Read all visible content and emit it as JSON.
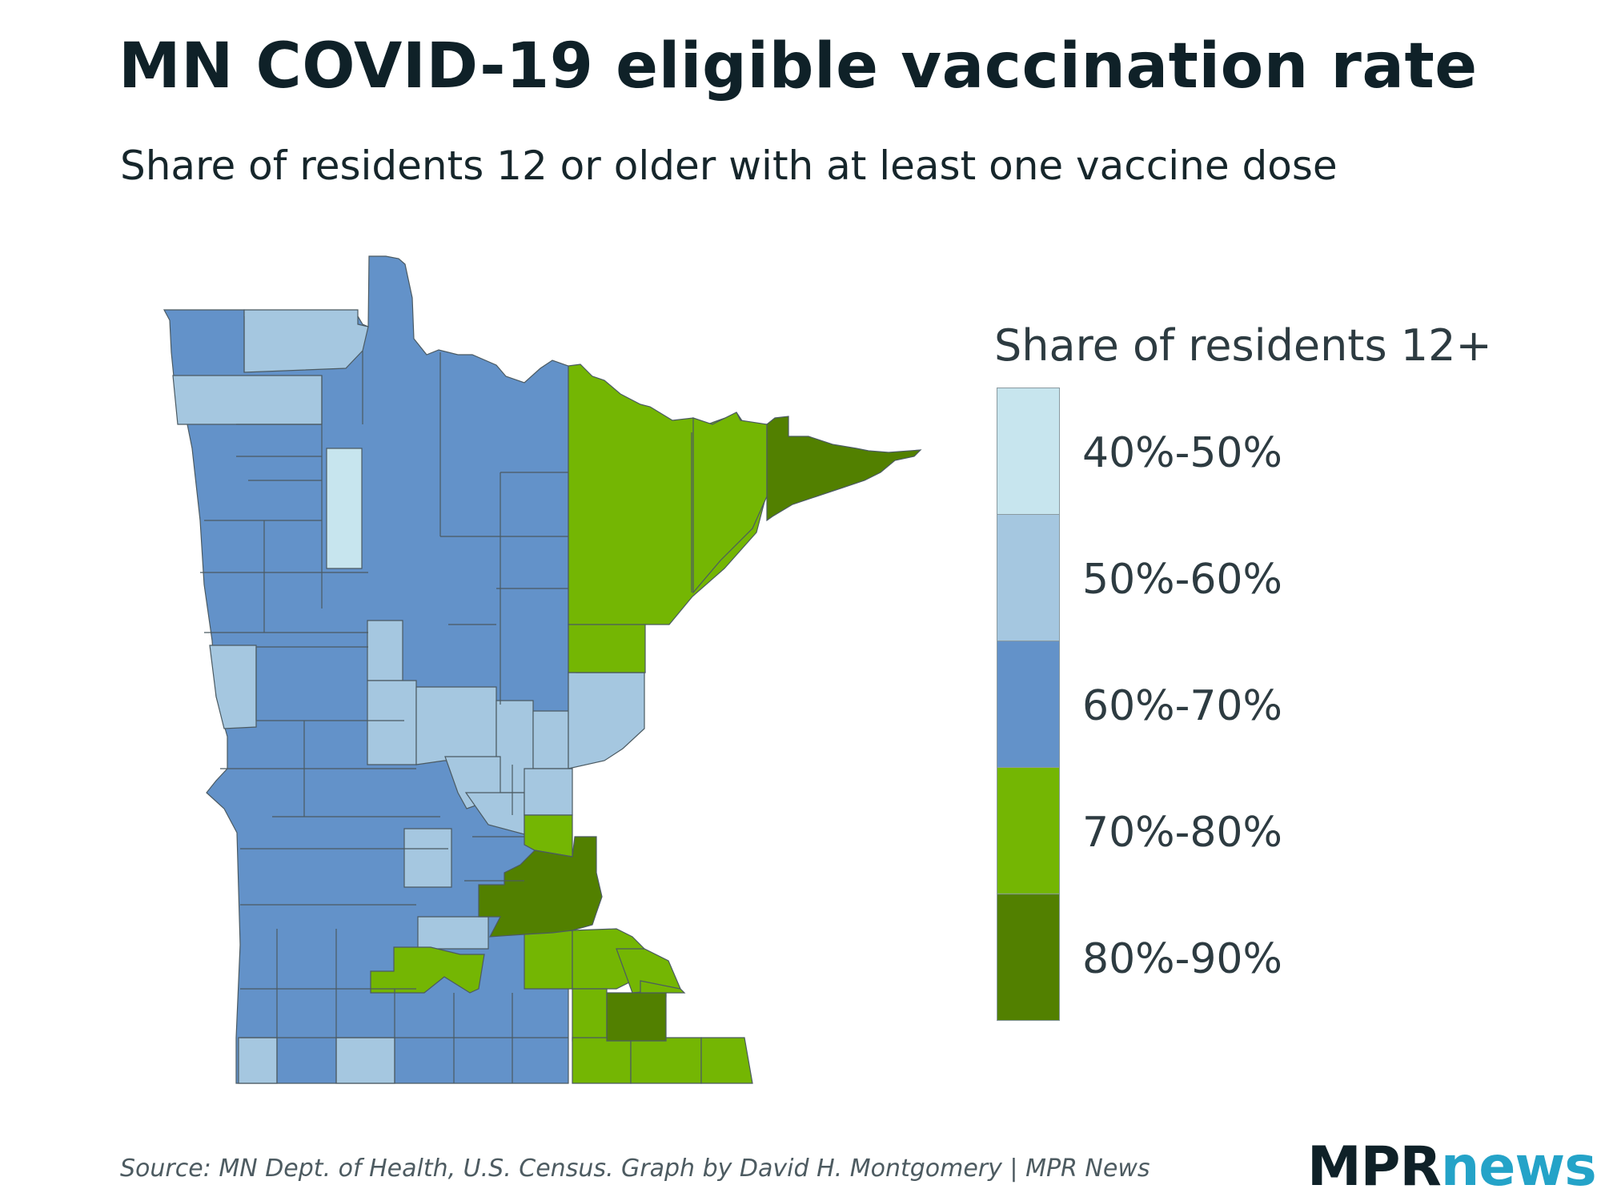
{
  "title": "MN COVID-19 eligible vaccination rate",
  "subtitle": "Share of residents 12 or older with at least one vaccine dose",
  "colors": {
    "b40_50": "#c7e5ee",
    "b50_60": "#a5c7e0",
    "b60_70": "#6392c9",
    "b70_80": "#74b603",
    "b80_90": "#528000"
  },
  "legend": {
    "title": "Share of residents 12+",
    "items": [
      {
        "label": "40%-50%",
        "color": "#c7e5ee"
      },
      {
        "label": "50%-60%",
        "color": "#a5c7e0"
      },
      {
        "label": "60%-70%",
        "color": "#6392c9"
      },
      {
        "label": "70%-80%",
        "color": "#74b603"
      },
      {
        "label": "80%-90%",
        "color": "#528000"
      }
    ]
  },
  "source": "Source: MN Dept. of Health, U.S. Census. Graph by David H. Montgomery | MPR News",
  "logo": {
    "part1": "MPR",
    "part2": "news"
  }
}
